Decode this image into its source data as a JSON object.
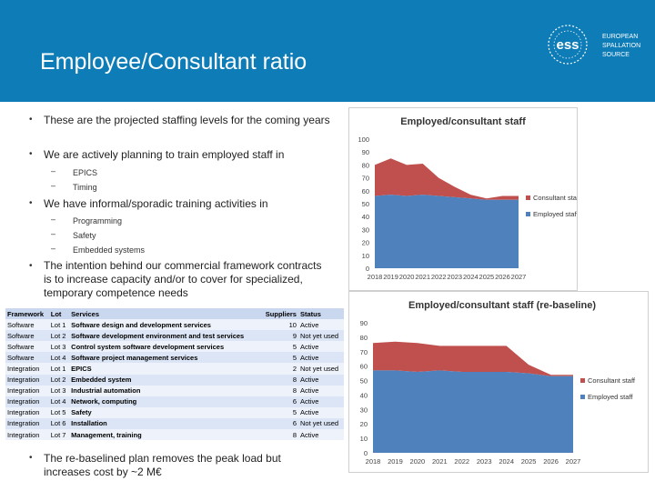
{
  "slide": {
    "title": "Employee/Consultant ratio",
    "logo": {
      "mark": "ess",
      "lines": [
        "EUROPEAN",
        "SPALLATION",
        "SOURCE"
      ]
    }
  },
  "bullets": [
    {
      "text": "These are the projected staffing levels for the coming years"
    },
    {
      "text": "We are actively planning to train employed staff in",
      "subs": [
        "EPICS",
        "Timing"
      ]
    },
    {
      "text": "We have informal/sporadic training activities in",
      "subs": [
        "Programming",
        "Safety",
        "Embedded systems"
      ]
    },
    {
      "text": "The intention behind our commercial framework contracts is to increase capacity and/or to cover for specialized, temporary competence needs"
    },
    {
      "text": "The re-baselined plan removes the peak load but increases cost by ~2 M€"
    }
  ],
  "table": {
    "headers": [
      "Framework",
      "Lot",
      "Services",
      "Suppliers",
      "Status"
    ],
    "rows": [
      [
        "Software",
        "Lot 1",
        "Software design and development services",
        "10",
        "Active"
      ],
      [
        "Software",
        "Lot 2",
        "Software development environment and test services",
        "9",
        "Not yet used"
      ],
      [
        "Software",
        "Lot 3",
        "Control system software development services",
        "5",
        "Active"
      ],
      [
        "Software",
        "Lot 4",
        "Software project management services",
        "5",
        "Active"
      ],
      [
        "Integration",
        "Lot 1",
        "EPICS",
        "2",
        "Not yet used"
      ],
      [
        "Integration",
        "Lot 2",
        "Embedded system",
        "8",
        "Active"
      ],
      [
        "Integration",
        "Lot 3",
        "Industrial automation",
        "8",
        "Active"
      ],
      [
        "Integration",
        "Lot 4",
        "Network, computing",
        "6",
        "Active"
      ],
      [
        "Integration",
        "Lot 5",
        "Safety",
        "5",
        "Active"
      ],
      [
        "Integration",
        "Lot 6",
        "Installation",
        "6",
        "Not yet used"
      ],
      [
        "Integration",
        "Lot 7",
        "Management, training",
        "8",
        "Active"
      ]
    ]
  },
  "colors": {
    "header": "#0d7cb7",
    "employed": "#4f81bd",
    "consultant": "#c0504d"
  },
  "chart_data": [
    {
      "type": "area",
      "title": "Employed/consultant staff",
      "x": [
        "2018",
        "2019",
        "2020",
        "2021",
        "2022",
        "2023",
        "2024",
        "2025",
        "2026",
        "2027"
      ],
      "series": [
        {
          "name": "Employed staff",
          "values": [
            56,
            57,
            56,
            57,
            56,
            55,
            54,
            53,
            53,
            53
          ]
        },
        {
          "name": "Consultant staff",
          "values": [
            24,
            28,
            24,
            24,
            14,
            8,
            3,
            1,
            3,
            3
          ]
        }
      ],
      "ylim": [
        0,
        100
      ],
      "yticks": [
        0,
        10,
        20,
        30,
        40,
        50,
        60,
        70,
        80,
        90,
        100
      ],
      "legend_order": [
        "Consultant staff",
        "Employed staff"
      ]
    },
    {
      "type": "area",
      "title": "Employed/consultant staff (re-baseline)",
      "x": [
        "2018",
        "2019",
        "2020",
        "2021",
        "2022",
        "2023",
        "2024",
        "2025",
        "2026",
        "2027"
      ],
      "series": [
        {
          "name": "Employed staff",
          "values": [
            57,
            57,
            56,
            57,
            56,
            56,
            56,
            55,
            53,
            53
          ]
        },
        {
          "name": "Consultant staff",
          "values": [
            19,
            20,
            20,
            17,
            18,
            18,
            18,
            6,
            1,
            1
          ]
        }
      ],
      "ylim": [
        0,
        90
      ],
      "yticks": [
        0,
        10,
        20,
        30,
        40,
        50,
        60,
        70,
        80,
        90
      ],
      "legend_order": [
        "Consultant staff",
        "Employed staff"
      ]
    }
  ]
}
